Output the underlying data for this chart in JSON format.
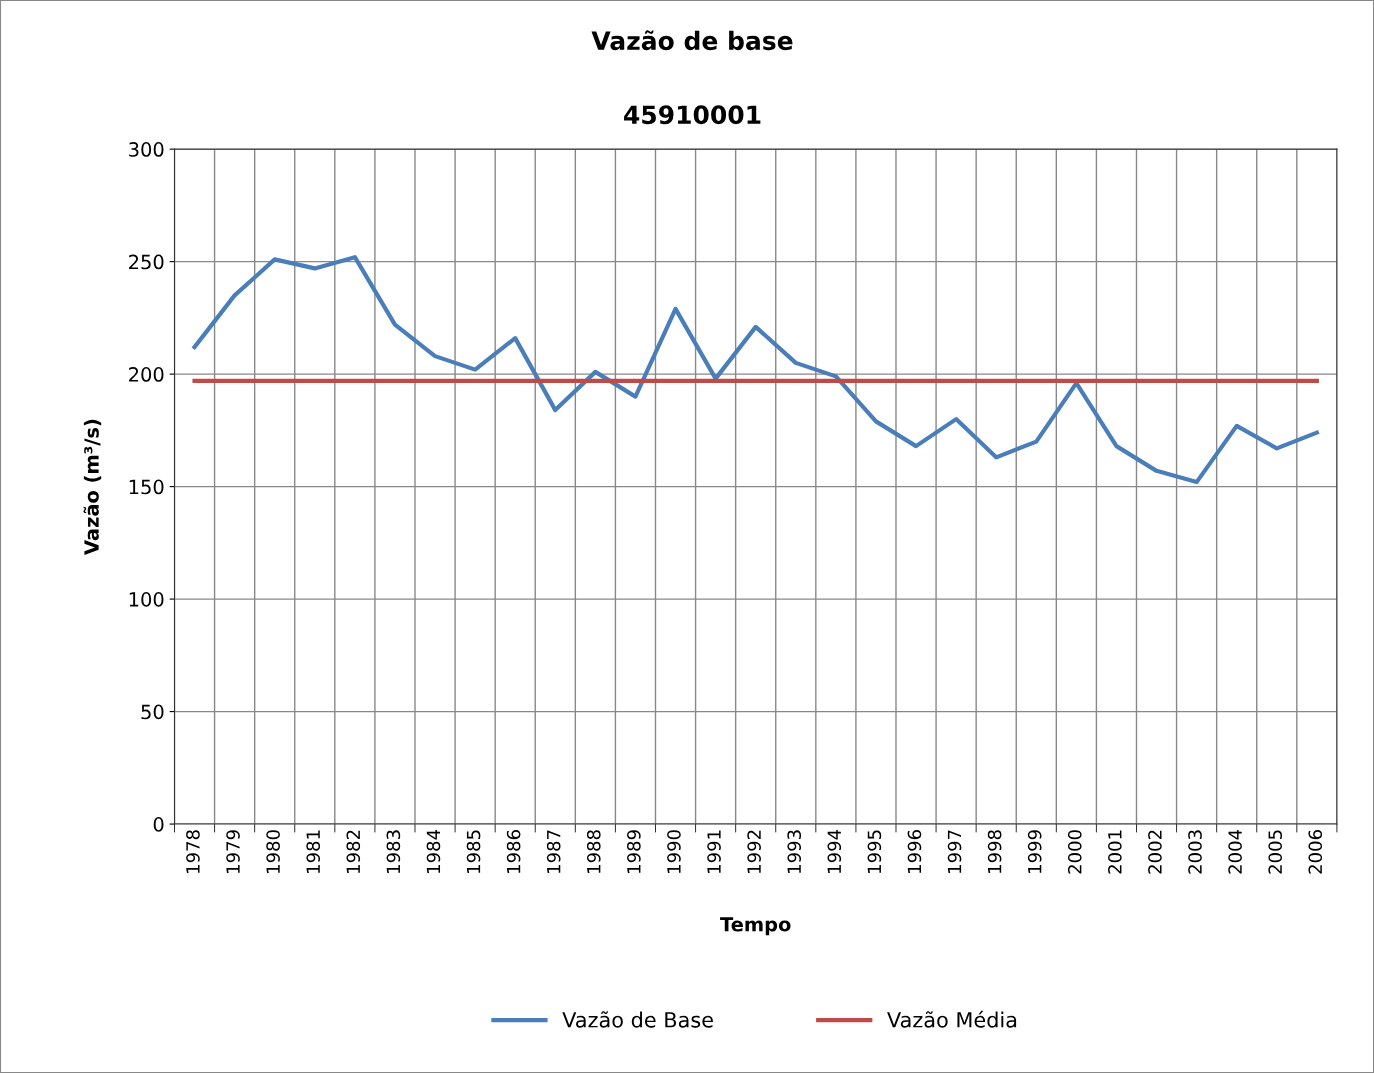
{
  "chart_data": {
    "type": "line",
    "title": "Vazão de base",
    "subtitle": "45910001",
    "xlabel": "Tempo",
    "ylabel": "Vazão (m³/s)",
    "categories": [
      "1978",
      "1979",
      "1980",
      "1981",
      "1982",
      "1983",
      "1984",
      "1985",
      "1986",
      "1987",
      "1988",
      "1989",
      "1990",
      "1991",
      "1992",
      "1993",
      "1994",
      "1995",
      "1996",
      "1997",
      "1998",
      "1999",
      "2000",
      "2001",
      "2002",
      "2003",
      "2004",
      "2005",
      "2006"
    ],
    "series": [
      {
        "name": "Vazão de Base",
        "color": "#4a7ebb",
        "values": [
          212,
          235,
          251,
          247,
          252,
          222,
          208,
          202,
          216,
          184,
          201,
          190,
          229,
          198,
          221,
          205,
          199,
          179,
          168,
          180,
          163,
          170,
          196,
          168,
          157,
          152,
          177,
          167,
          174
        ]
      },
      {
        "name": "Vazão Média",
        "color": "#be4b48",
        "values": [
          197,
          197,
          197,
          197,
          197,
          197,
          197,
          197,
          197,
          197,
          197,
          197,
          197,
          197,
          197,
          197,
          197,
          197,
          197,
          197,
          197,
          197,
          197,
          197,
          197,
          197,
          197,
          197,
          197
        ]
      }
    ],
    "ylim": [
      0,
      300
    ],
    "yticks": [
      0,
      50,
      100,
      150,
      200,
      250,
      300
    ],
    "grid": true,
    "legend": "bottom",
    "marker": "none",
    "line_style": "solid"
  }
}
